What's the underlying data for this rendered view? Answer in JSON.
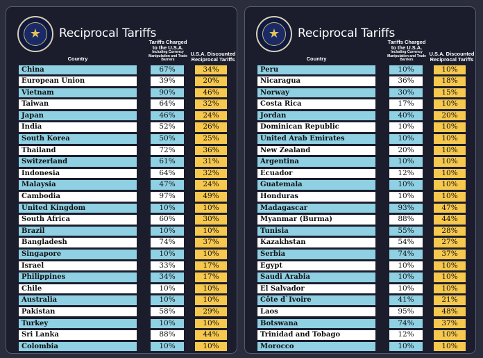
{
  "colors": {
    "highlight_row": "#8fd0e3",
    "plain_row": "#ffffff",
    "discounted_cell": "#f6c84e",
    "background": "#1b1d2d"
  },
  "panels": [
    {
      "title": "Reciprocal Tariffs",
      "seal_icon": "presidential-seal-icon",
      "headers": {
        "country": "Country",
        "charged": "Tariffs Charged to the U.S.A.",
        "charged_sub": "Including Currency Manipulation and Trade Barriers",
        "discounted": "U.S.A. Discounted Reciprocal Tariffs"
      },
      "rows": [
        {
          "country": "China",
          "charged": "67%",
          "discounted": "34%"
        },
        {
          "country": "European Union",
          "charged": "39%",
          "discounted": "20%"
        },
        {
          "country": "Vietnam",
          "charged": "90%",
          "discounted": "46%"
        },
        {
          "country": "Taiwan",
          "charged": "64%",
          "discounted": "32%"
        },
        {
          "country": "Japan",
          "charged": "46%",
          "discounted": "24%"
        },
        {
          "country": "India",
          "charged": "52%",
          "discounted": "26%"
        },
        {
          "country": "South Korea",
          "charged": "50%",
          "discounted": "25%"
        },
        {
          "country": "Thailand",
          "charged": "72%",
          "discounted": "36%"
        },
        {
          "country": "Switzerland",
          "charged": "61%",
          "discounted": "31%"
        },
        {
          "country": "Indonesia",
          "charged": "64%",
          "discounted": "32%"
        },
        {
          "country": "Malaysia",
          "charged": "47%",
          "discounted": "24%"
        },
        {
          "country": "Cambodia",
          "charged": "97%",
          "discounted": "49%"
        },
        {
          "country": "United Kingdom",
          "charged": "10%",
          "discounted": "10%"
        },
        {
          "country": "South Africa",
          "charged": "60%",
          "discounted": "30%"
        },
        {
          "country": "Brazil",
          "charged": "10%",
          "discounted": "10%"
        },
        {
          "country": "Bangladesh",
          "charged": "74%",
          "discounted": "37%"
        },
        {
          "country": "Singapore",
          "charged": "10%",
          "discounted": "10%"
        },
        {
          "country": "Israel",
          "charged": "33%",
          "discounted": "17%"
        },
        {
          "country": "Philippines",
          "charged": "34%",
          "discounted": "17%"
        },
        {
          "country": "Chile",
          "charged": "10%",
          "discounted": "10%"
        },
        {
          "country": "Australia",
          "charged": "10%",
          "discounted": "10%"
        },
        {
          "country": "Pakistan",
          "charged": "58%",
          "discounted": "29%"
        },
        {
          "country": "Turkey",
          "charged": "10%",
          "discounted": "10%"
        },
        {
          "country": "Sri Lanka",
          "charged": "88%",
          "discounted": "44%"
        },
        {
          "country": "Colombia",
          "charged": "10%",
          "discounted": "10%"
        }
      ]
    },
    {
      "title": "Reciprocal Tariffs",
      "seal_icon": "presidential-seal-icon",
      "headers": {
        "country": "Country",
        "charged": "Tariffs Charged to the U.S.A.",
        "charged_sub": "Including Currency Manipulation and Trade Barriers",
        "discounted": "U.S.A. Discounted Reciprocal Tariffs"
      },
      "rows": [
        {
          "country": "Peru",
          "charged": "10%",
          "discounted": "10%"
        },
        {
          "country": "Nicaragua",
          "charged": "36%",
          "discounted": "18%"
        },
        {
          "country": "Norway",
          "charged": "30%",
          "discounted": "15%"
        },
        {
          "country": "Costa Rica",
          "charged": "17%",
          "discounted": "10%"
        },
        {
          "country": "Jordan",
          "charged": "40%",
          "discounted": "20%"
        },
        {
          "country": "Dominican Republic",
          "charged": "10%",
          "discounted": "10%"
        },
        {
          "country": "United Arab Emirates",
          "charged": "10%",
          "discounted": "10%"
        },
        {
          "country": "New Zealand",
          "charged": "20%",
          "discounted": "10%"
        },
        {
          "country": "Argentina",
          "charged": "10%",
          "discounted": "10%"
        },
        {
          "country": "Ecuador",
          "charged": "12%",
          "discounted": "10%"
        },
        {
          "country": "Guatemala",
          "charged": "10%",
          "discounted": "10%"
        },
        {
          "country": "Honduras",
          "charged": "10%",
          "discounted": "10%"
        },
        {
          "country": "Madagascar",
          "charged": "93%",
          "discounted": "47%"
        },
        {
          "country": "Myanmar (Burma)",
          "charged": "88%",
          "discounted": "44%"
        },
        {
          "country": "Tunisia",
          "charged": "55%",
          "discounted": "28%"
        },
        {
          "country": "Kazakhstan",
          "charged": "54%",
          "discounted": "27%"
        },
        {
          "country": "Serbia",
          "charged": "74%",
          "discounted": "37%"
        },
        {
          "country": "Egypt",
          "charged": "10%",
          "discounted": "10%"
        },
        {
          "country": "Saudi Arabia",
          "charged": "10%",
          "discounted": "10%"
        },
        {
          "country": "El Salvador",
          "charged": "10%",
          "discounted": "10%"
        },
        {
          "country": "Côte d`Ivoire",
          "charged": "41%",
          "discounted": "21%"
        },
        {
          "country": "Laos",
          "charged": "95%",
          "discounted": "48%"
        },
        {
          "country": "Botswana",
          "charged": "74%",
          "discounted": "37%"
        },
        {
          "country": "Trinidad and Tobago",
          "charged": "12%",
          "discounted": "10%"
        },
        {
          "country": "Morocco",
          "charged": "10%",
          "discounted": "10%"
        }
      ]
    }
  ]
}
